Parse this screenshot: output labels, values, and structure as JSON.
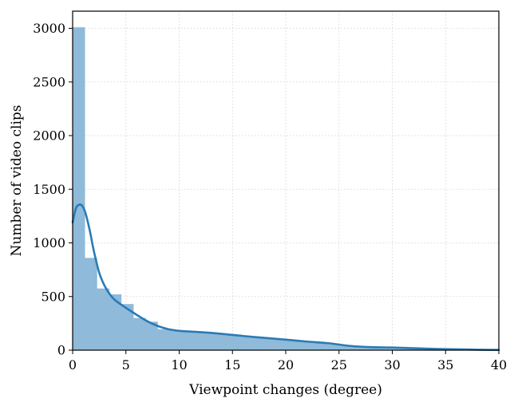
{
  "chart_data": {
    "type": "bar",
    "subtype": "histogram-with-kde",
    "xlabel": "Viewpoint changes (degree)",
    "ylabel": "Number of video clips",
    "xlim": [
      0,
      40
    ],
    "ylim": [
      0,
      3160
    ],
    "xticks": [
      0,
      5,
      10,
      15,
      20,
      25,
      30,
      35,
      40
    ],
    "yticks": [
      0,
      500,
      1000,
      1500,
      2000,
      2500,
      3000
    ],
    "grid": true,
    "bar_color": "#8fbad9",
    "line_color": "#2a7bb5",
    "bin_width": 1.14,
    "bins": [
      {
        "x0": 0.0,
        "value": 3010
      },
      {
        "x0": 1.14,
        "value": 860
      },
      {
        "x0": 2.28,
        "value": 575
      },
      {
        "x0": 3.42,
        "value": 520
      },
      {
        "x0": 4.56,
        "value": 430
      },
      {
        "x0": 5.7,
        "value": 300
      },
      {
        "x0": 6.84,
        "value": 265
      },
      {
        "x0": 7.98,
        "value": 195
      },
      {
        "x0": 9.12,
        "value": 185
      },
      {
        "x0": 10.26,
        "value": 175
      },
      {
        "x0": 11.4,
        "value": 168
      },
      {
        "x0": 12.54,
        "value": 160
      },
      {
        "x0": 13.68,
        "value": 150
      },
      {
        "x0": 14.82,
        "value": 140
      },
      {
        "x0": 15.96,
        "value": 128
      },
      {
        "x0": 17.1,
        "value": 118
      },
      {
        "x0": 18.24,
        "value": 108
      },
      {
        "x0": 19.38,
        "value": 98
      },
      {
        "x0": 20.52,
        "value": 85
      },
      {
        "x0": 21.66,
        "value": 75
      },
      {
        "x0": 22.8,
        "value": 65
      },
      {
        "x0": 23.94,
        "value": 55
      },
      {
        "x0": 25.08,
        "value": 40
      },
      {
        "x0": 26.22,
        "value": 30
      },
      {
        "x0": 27.36,
        "value": 28
      },
      {
        "x0": 28.5,
        "value": 25
      },
      {
        "x0": 29.64,
        "value": 22
      },
      {
        "x0": 30.78,
        "value": 18
      },
      {
        "x0": 31.92,
        "value": 15
      },
      {
        "x0": 33.06,
        "value": 12
      },
      {
        "x0": 34.2,
        "value": 10
      },
      {
        "x0": 35.34,
        "value": 8
      },
      {
        "x0": 36.48,
        "value": 6
      },
      {
        "x0": 37.62,
        "value": 4
      },
      {
        "x0": 38.76,
        "value": 2
      }
    ],
    "kde": {
      "x": [
        0,
        0.3,
        0.6,
        0.9,
        1.2,
        1.6,
        2.0,
        2.5,
        3.0,
        3.5,
        4.0,
        5.0,
        6.0,
        7.0,
        8.0,
        9.0,
        10.0,
        12.0,
        14.0,
        16.0,
        18.0,
        20.0,
        22.0,
        24.0,
        26.0,
        28.0,
        30.0,
        32.0,
        34.0,
        36.0,
        38.0,
        40.0
      ],
      "y": [
        1190,
        1320,
        1355,
        1345,
        1280,
        1120,
        920,
        720,
        600,
        520,
        465,
        395,
        330,
        270,
        225,
        195,
        180,
        168,
        152,
        132,
        115,
        98,
        80,
        65,
        40,
        28,
        25,
        18,
        12,
        8,
        4,
        2
      ]
    }
  }
}
